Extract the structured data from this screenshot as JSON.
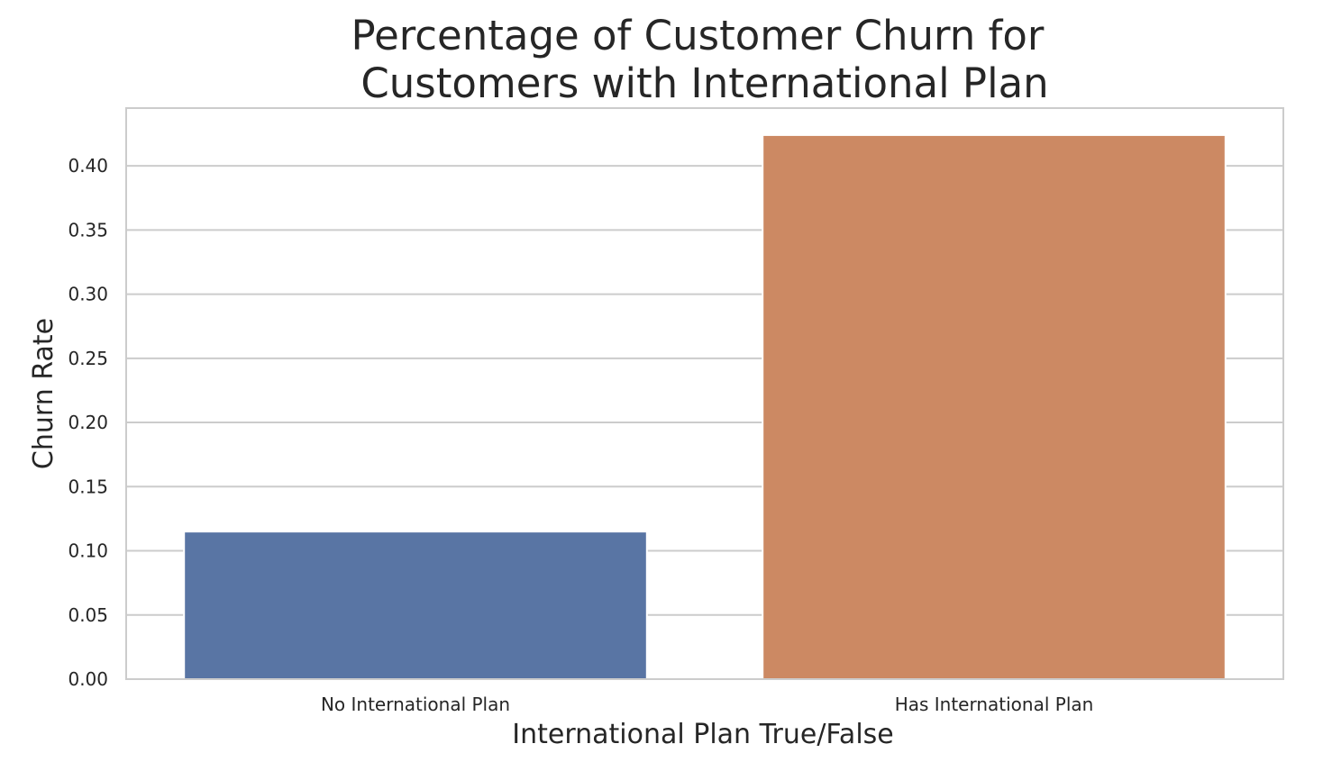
{
  "chart_data": {
    "type": "bar",
    "title_lines": [
      "Percentage of Customer Churn for",
      "Customers with International Plan"
    ],
    "xlabel": "International Plan True/False",
    "ylabel": "Churn Rate",
    "categories": [
      "No International Plan",
      "Has International Plan"
    ],
    "values": [
      0.115,
      0.424
    ],
    "ylim": [
      0,
      0.445
    ],
    "yticks": [
      0.0,
      0.05,
      0.1,
      0.15,
      0.2,
      0.25,
      0.3,
      0.35,
      0.4
    ],
    "ytick_labels": [
      "0.00",
      "0.05",
      "0.10",
      "0.15",
      "0.20",
      "0.25",
      "0.30",
      "0.35",
      "0.40"
    ],
    "colors": [
      "#5975a4",
      "#cc8963"
    ],
    "grid": true,
    "legend": "none"
  }
}
